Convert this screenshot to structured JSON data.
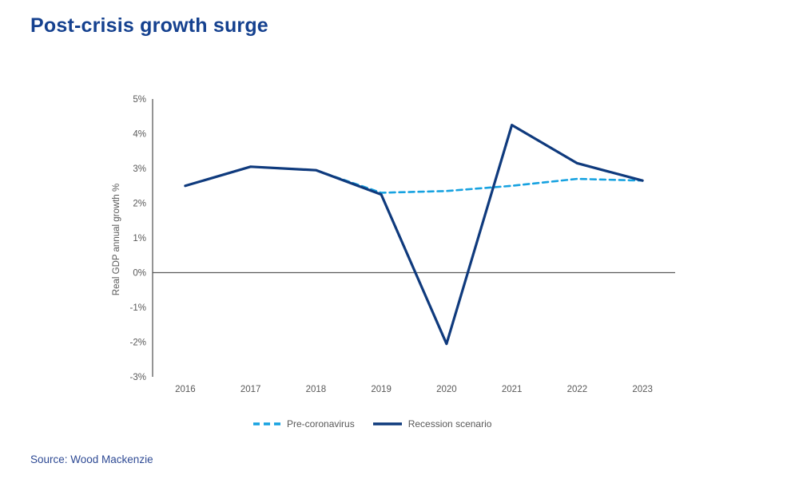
{
  "title": "Post-crisis growth surge",
  "source_note": "Source: Wood Mackenzie",
  "colors": {
    "title": "#15418f",
    "source": "#2e4a94",
    "axis_text": "#595959",
    "axis_line": "#4d4d4d",
    "zero_line": "#595959",
    "pre_coronavirus": "#17a2e0",
    "recession_scenario": "#0f3a7d"
  },
  "legend": {
    "items": [
      {
        "label": "Pre-coronavirus",
        "style": "dashed",
        "color": "#17a2e0"
      },
      {
        "label": "Recession scenario",
        "style": "solid",
        "color": "#0f3a7d"
      }
    ]
  },
  "chart_data": {
    "type": "line",
    "title": "Post-crisis growth surge",
    "xlabel": "",
    "ylabel": "Real GDP annual growth %",
    "x": [
      "2016",
      "2017",
      "2018",
      "2019",
      "2020",
      "2021",
      "2022",
      "2023"
    ],
    "series": [
      {
        "name": "Pre-coronavirus",
        "line_style": "dashed",
        "color": "#17a2e0",
        "values": [
          2.5,
          3.05,
          2.95,
          2.3,
          2.35,
          2.5,
          2.7,
          2.65
        ]
      },
      {
        "name": "Recession scenario",
        "line_style": "solid",
        "color": "#0f3a7d",
        "values": [
          2.5,
          3.05,
          2.95,
          2.25,
          -2.05,
          4.25,
          3.15,
          2.65
        ]
      }
    ],
    "ylim": [
      -3,
      5
    ],
    "ytick_step": 1,
    "ytick_suffix": "%",
    "grid": false,
    "zero_line": true,
    "legend_position": "bottom"
  }
}
